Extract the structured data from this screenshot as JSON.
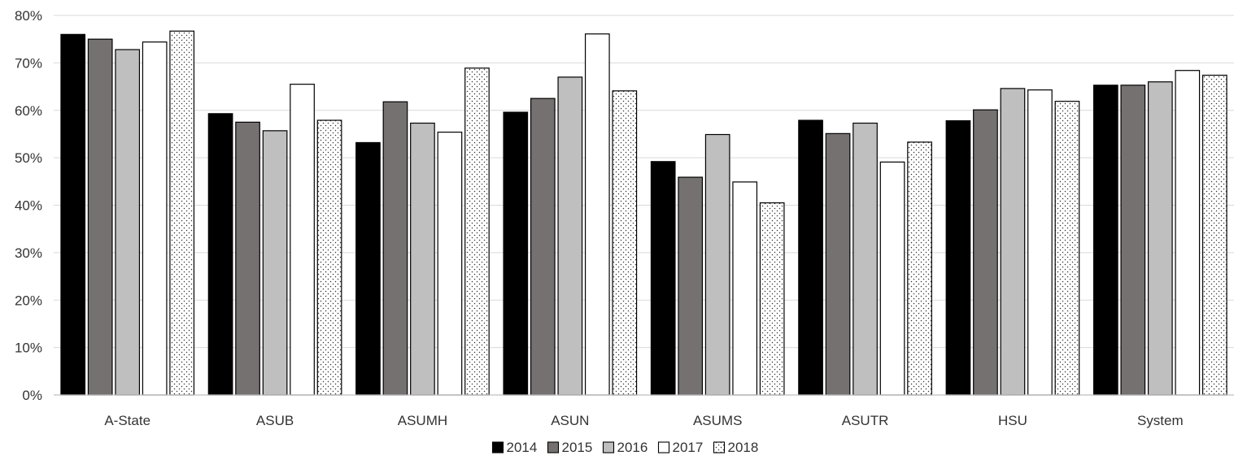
{
  "chart_data": {
    "type": "bar",
    "title": "",
    "xlabel": "",
    "ylabel": "",
    "ylim": [
      0,
      80
    ],
    "yticks": [
      0,
      10,
      20,
      30,
      40,
      50,
      60,
      70,
      80
    ],
    "ytick_labels": [
      "0%",
      "10%",
      "20%",
      "30%",
      "40%",
      "50%",
      "60%",
      "70%",
      "80%"
    ],
    "grid": true,
    "legend_position": "bottom",
    "categories": [
      "A-State",
      "ASUB",
      "ASUMH",
      "ASUN",
      "ASUMS",
      "ASUTR",
      "HSU",
      "System"
    ],
    "series": [
      {
        "name": "2014",
        "fill": "#000000",
        "pattern": "solid",
        "values": [
          76.0,
          59.3,
          53.2,
          59.6,
          49.2,
          57.9,
          57.8,
          65.3
        ]
      },
      {
        "name": "2015",
        "fill": "#767171",
        "pattern": "solid",
        "values": [
          75.0,
          57.5,
          61.8,
          62.5,
          45.9,
          55.1,
          60.1,
          65.3
        ]
      },
      {
        "name": "2016",
        "fill": "#bfbfbf",
        "pattern": "solid",
        "values": [
          72.8,
          55.7,
          57.3,
          67.0,
          54.9,
          57.3,
          64.6,
          66.0
        ]
      },
      {
        "name": "2017",
        "fill": "#ffffff",
        "pattern": "solid",
        "values": [
          74.4,
          65.5,
          55.4,
          76.1,
          44.9,
          49.1,
          64.3,
          68.4
        ]
      },
      {
        "name": "2018",
        "fill": "#ffffff",
        "pattern": "dots",
        "values": [
          76.7,
          57.9,
          68.9,
          64.1,
          40.5,
          53.3,
          61.9,
          67.4
        ]
      }
    ]
  }
}
